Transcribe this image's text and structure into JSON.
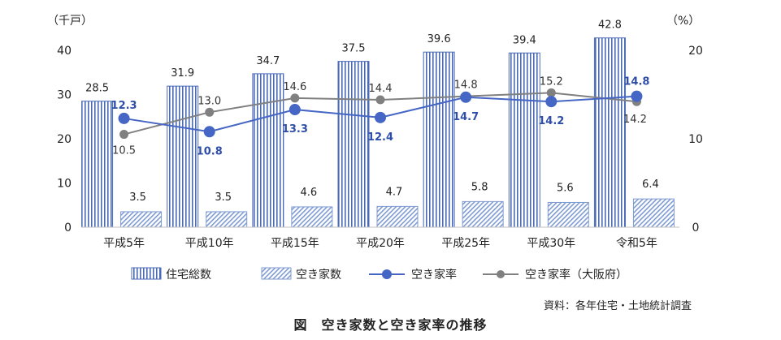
{
  "chart_data": {
    "type": "bar",
    "categories": [
      "平成5年",
      "平成10年",
      "平成15年",
      "平成20年",
      "平成25年",
      "平成30年",
      "令和5年"
    ],
    "left_axis": {
      "unit_label": "（千戸）",
      "ticks": [
        "0",
        "10",
        "20",
        "30",
        "40"
      ],
      "ylim": [
        0,
        40
      ]
    },
    "right_axis": {
      "unit_label": "（%）",
      "ticks": [
        "0",
        "10",
        "20"
      ],
      "ylim": [
        0,
        20
      ]
    },
    "series": [
      {
        "name": "住宅総数",
        "kind": "bar",
        "axis": "left",
        "pattern": "vertical-stripes",
        "color": "#4a6ab8",
        "values": [
          28.5,
          31.9,
          34.7,
          37.5,
          39.6,
          39.4,
          42.8
        ],
        "labels": [
          "28.5",
          "31.9",
          "34.7",
          "37.5",
          "39.6",
          "39.4",
          "42.8"
        ]
      },
      {
        "name": "空き家数",
        "kind": "bar",
        "axis": "left",
        "pattern": "diagonal-hatch",
        "color": "#7f9bd3",
        "values": [
          3.5,
          3.5,
          4.6,
          4.7,
          5.8,
          5.6,
          6.4
        ],
        "labels": [
          "3.5",
          "3.5",
          "4.6",
          "4.7",
          "5.8",
          "5.6",
          "6.4"
        ]
      },
      {
        "name": "空き家率",
        "kind": "line",
        "axis": "right",
        "color": "#4566c4",
        "values": [
          12.3,
          10.8,
          13.3,
          12.4,
          14.7,
          14.2,
          14.8
        ],
        "labels": [
          "12.3",
          "10.8",
          "13.3",
          "12.4",
          "14.7",
          "14.2",
          "14.8"
        ]
      },
      {
        "name": "空き家率（大阪府）",
        "kind": "line",
        "axis": "right",
        "color": "#808080",
        "values": [
          10.5,
          13.0,
          14.6,
          14.4,
          14.8,
          15.2,
          14.2
        ],
        "labels": [
          "10.5",
          "13.0",
          "14.6",
          "14.4",
          "14.8",
          "15.2",
          "14.2"
        ]
      }
    ],
    "legend": {
      "position": "bottom"
    },
    "grid": false
  },
  "source_note": "資料：各年住宅・土地統計調査",
  "caption": "図　空き家数と空き家率の推移"
}
